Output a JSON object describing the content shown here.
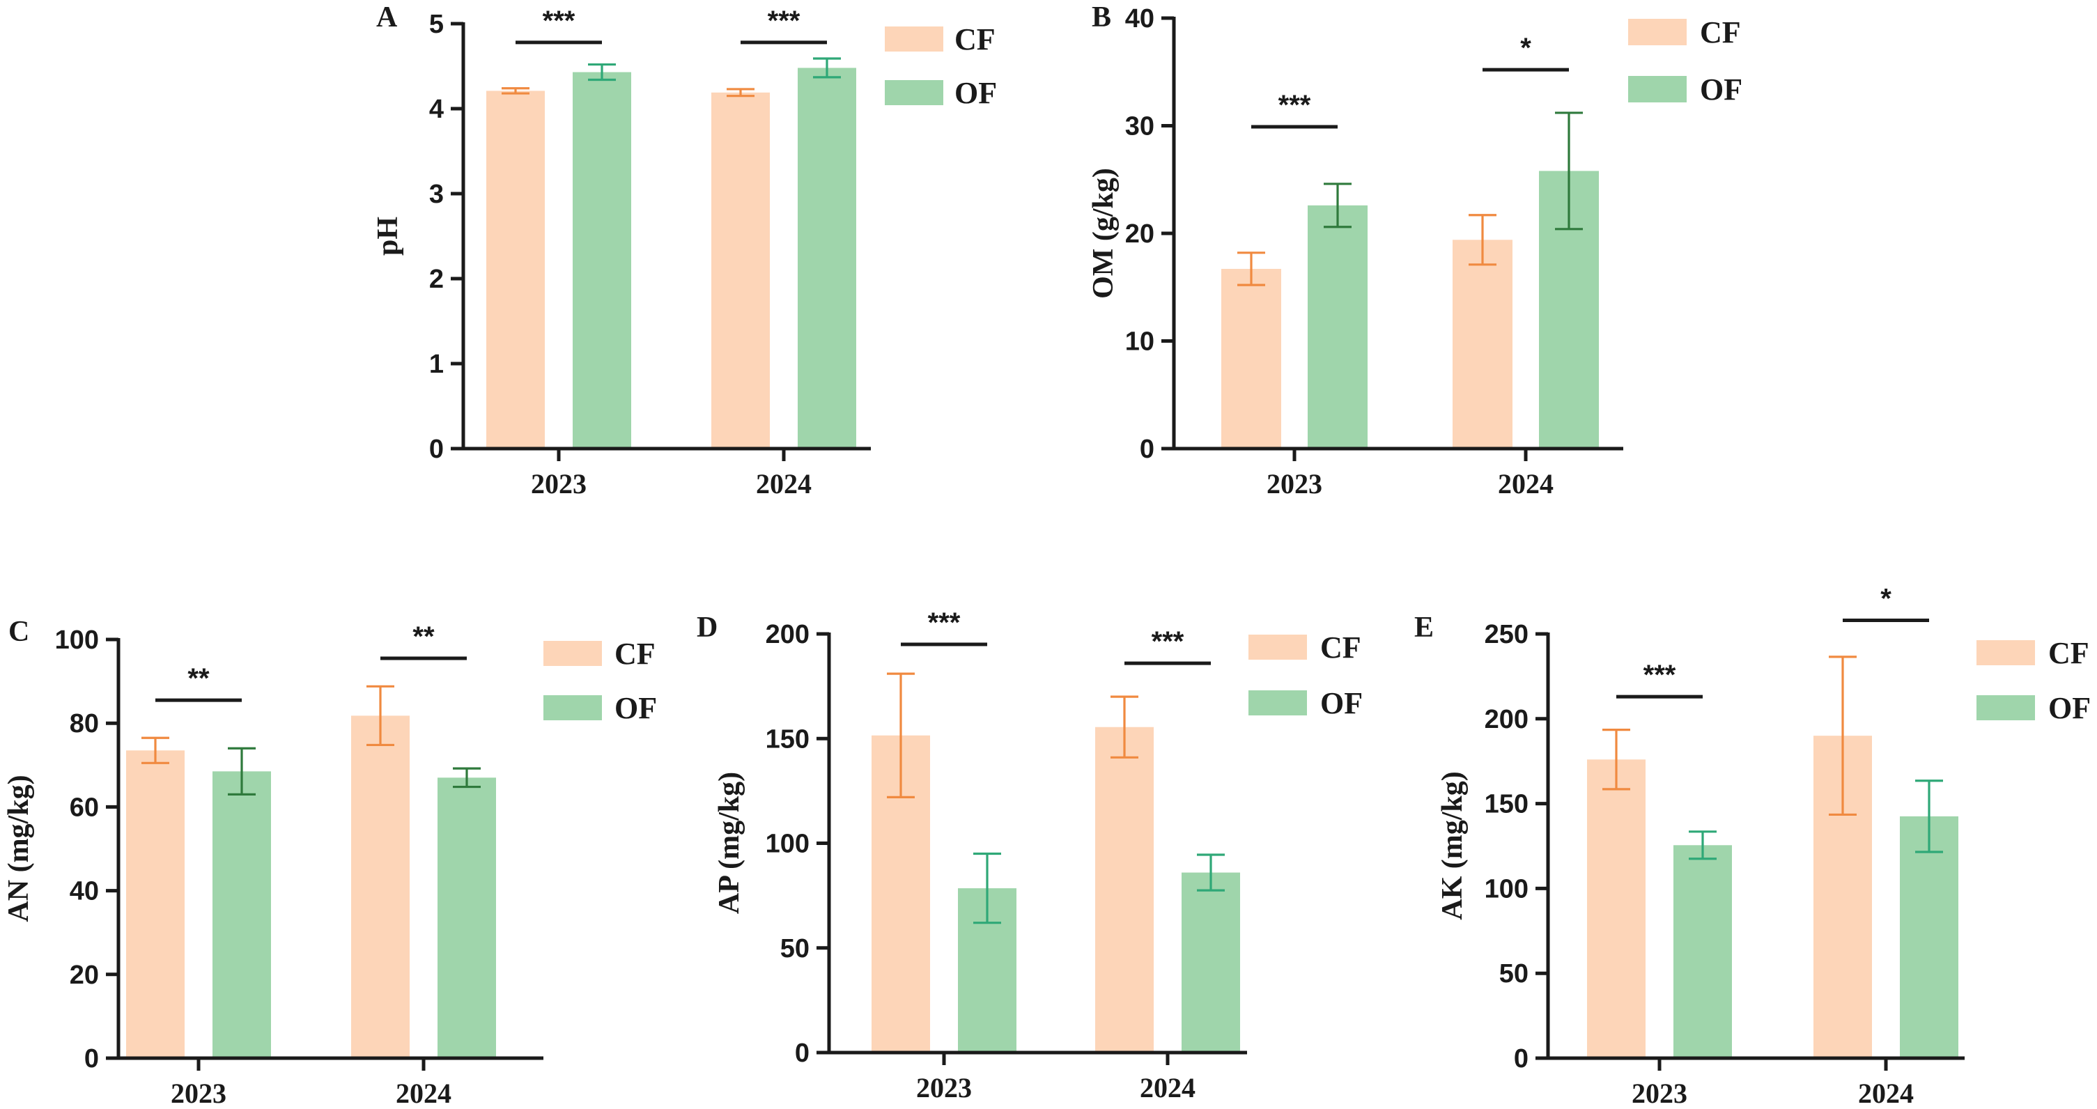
{
  "colors": {
    "cf_fill": "#fdd5b8",
    "of_fill": "#9fd5ab",
    "cf_err": "#f08a40",
    "of_err_light": "#2fa877",
    "of_err_dark": "#2f7a3c",
    "axis": "#1a1a1a"
  },
  "legend": {
    "cf": "CF",
    "of": "OF"
  },
  "chart_data": [
    {
      "panel": "A",
      "type": "bar",
      "ylabel": "pH",
      "ylim": [
        0,
        5
      ],
      "yticks": [
        0,
        1,
        2,
        3,
        4,
        5
      ],
      "categories": [
        "2023",
        "2024"
      ],
      "series": [
        {
          "name": "CF",
          "values": [
            4.21,
            4.19
          ],
          "errors": [
            0.03,
            0.04
          ]
        },
        {
          "name": "OF",
          "values": [
            4.43,
            4.48
          ],
          "errors": [
            0.09,
            0.11
          ]
        }
      ],
      "significance": [
        "***",
        "***"
      ],
      "sig_level": [
        4.78,
        4.78
      ]
    },
    {
      "panel": "B",
      "type": "bar",
      "ylabel": "OM (g/kg)",
      "ylim": [
        0,
        40
      ],
      "yticks": [
        0,
        10,
        20,
        30,
        40
      ],
      "categories": [
        "2023",
        "2024"
      ],
      "series": [
        {
          "name": "CF",
          "values": [
            16.7,
            19.4
          ],
          "errors": [
            1.5,
            2.3
          ]
        },
        {
          "name": "OF",
          "values": [
            22.6,
            25.8
          ],
          "errors": [
            2.0,
            5.4
          ]
        }
      ],
      "significance": [
        "***",
        "*"
      ],
      "sig_level": [
        29.9,
        35.2
      ]
    },
    {
      "panel": "C",
      "type": "bar",
      "ylabel": "AN (mg/kg)",
      "ylim": [
        0,
        100
      ],
      "yticks": [
        0,
        20,
        40,
        60,
        80,
        100
      ],
      "categories": [
        "2023",
        "2024"
      ],
      "series": [
        {
          "name": "CF",
          "values": [
            73.5,
            81.8
          ],
          "errors": [
            3.0,
            7.0
          ]
        },
        {
          "name": "OF",
          "values": [
            68.5,
            67.0
          ],
          "errors": [
            5.5,
            2.2
          ]
        }
      ],
      "significance": [
        "**",
        "**"
      ],
      "sig_level": [
        85.5,
        95.5
      ]
    },
    {
      "panel": "D",
      "type": "bar",
      "ylabel": "AP (mg/kg)",
      "ylim": [
        0,
        200
      ],
      "yticks": [
        0,
        50,
        100,
        150,
        200
      ],
      "categories": [
        "2023",
        "2024"
      ],
      "series": [
        {
          "name": "CF",
          "values": [
            151.5,
            155.5
          ],
          "errors": [
            29.5,
            14.5
          ]
        },
        {
          "name": "OF",
          "values": [
            78.5,
            86.0
          ],
          "errors": [
            16.5,
            8.5
          ]
        }
      ],
      "significance": [
        "***",
        "***"
      ],
      "sig_level": [
        195.0,
        186.0
      ]
    },
    {
      "panel": "E",
      "type": "bar",
      "ylabel": "AK (mg/kg)",
      "ylim": [
        0,
        250
      ],
      "yticks": [
        0,
        50,
        100,
        150,
        200,
        250
      ],
      "categories": [
        "2023",
        "2024"
      ],
      "series": [
        {
          "name": "CF",
          "values": [
            176.0,
            190.0
          ],
          "errors": [
            17.5,
            46.5
          ]
        },
        {
          "name": "OF",
          "values": [
            125.5,
            142.5
          ],
          "errors": [
            8.0,
            21.0
          ]
        }
      ],
      "significance": [
        "***",
        "*"
      ],
      "sig_level": [
        213.0,
        258.0
      ]
    }
  ]
}
